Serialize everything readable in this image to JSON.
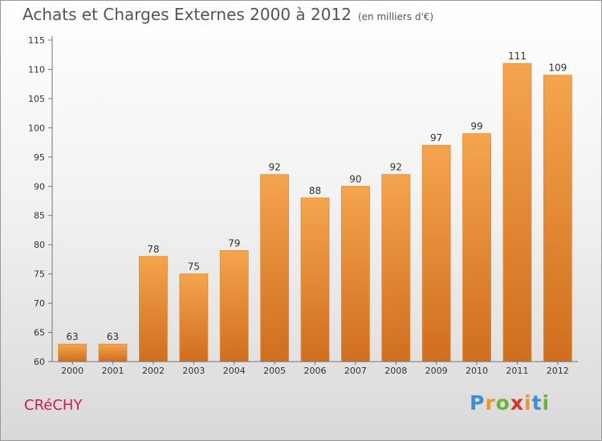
{
  "header": {
    "title": "Achats et Charges Externes 2000 à 2012",
    "unit": "(en milliers d'€)"
  },
  "footer": {
    "place": "CRéCHY",
    "brand_letters": [
      "P",
      "r",
      "o",
      "x",
      "i",
      "t",
      "i"
    ],
    "brand_colors": [
      "#3a8fd9",
      "#e8972a",
      "#6bb536",
      "#d9342b",
      "#e8972a",
      "#3a8fd9",
      "#6bb536"
    ]
  },
  "chart_data": {
    "type": "bar",
    "categories": [
      "2000",
      "2001",
      "2002",
      "2003",
      "2004",
      "2005",
      "2006",
      "2007",
      "2008",
      "2009",
      "2010",
      "2011",
      "2012"
    ],
    "values": [
      63,
      63,
      78,
      75,
      79,
      92,
      88,
      90,
      92,
      97,
      99,
      111,
      109
    ],
    "title": "Achats et Charges Externes 2000 à 2012",
    "ylim": [
      60,
      115
    ],
    "yticks": [
      60,
      65,
      70,
      75,
      80,
      85,
      90,
      95,
      100,
      105,
      110,
      115
    ],
    "grid": false,
    "bar_color_top": "#f5a44e",
    "bar_color_bottom": "#cf6e1e"
  }
}
